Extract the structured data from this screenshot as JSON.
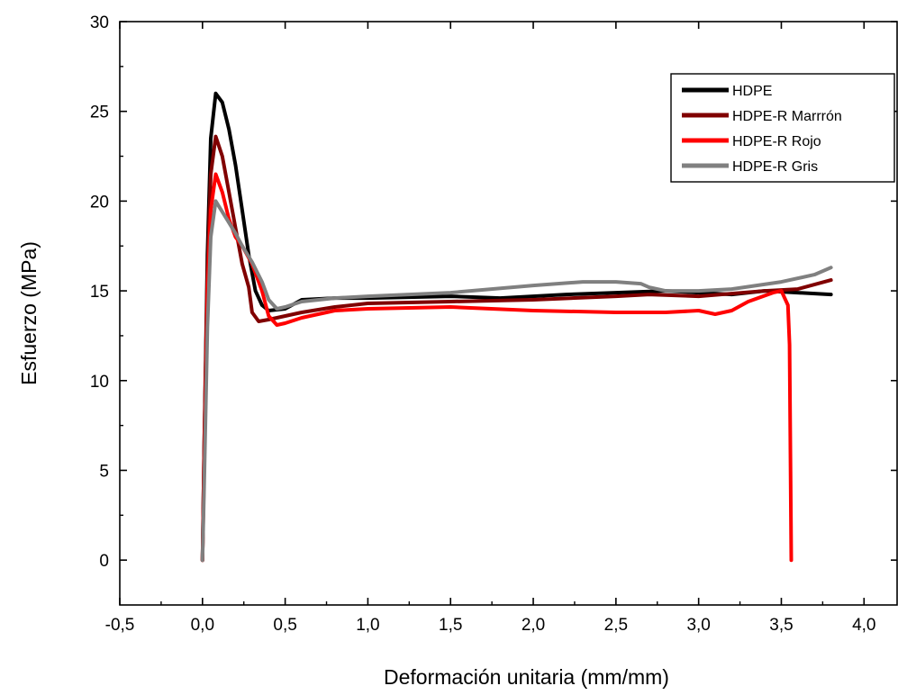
{
  "chart_data": {
    "type": "line",
    "title": "",
    "xlabel": "Deformación unitaria (mm/mm)",
    "ylabel": "Esfuerzo (MPa)",
    "xlim": [
      -0.5,
      4.2
    ],
    "ylim": [
      -2.5,
      30
    ],
    "x_ticks": [
      -0.5,
      0.0,
      0.5,
      1.0,
      1.5,
      2.0,
      2.5,
      3.0,
      3.5,
      4.0
    ],
    "x_tick_labels": [
      "-0,5",
      "0,0",
      "0,5",
      "1,0",
      "1,5",
      "2,0",
      "2,5",
      "3,0",
      "3,5",
      "4,0"
    ],
    "y_ticks": [
      0,
      5,
      10,
      15,
      20,
      25,
      30
    ],
    "y_tick_labels": [
      "0",
      "5",
      "10",
      "15",
      "20",
      "25",
      "30"
    ],
    "grid": false,
    "legend_position": "top-right",
    "series": [
      {
        "name": "HDPE",
        "color": "#000000",
        "points": [
          [
            0,
            0
          ],
          [
            0.01,
            6
          ],
          [
            0.03,
            17
          ],
          [
            0.05,
            23.5
          ],
          [
            0.08,
            26
          ],
          [
            0.12,
            25.5
          ],
          [
            0.16,
            24
          ],
          [
            0.2,
            22
          ],
          [
            0.24,
            19.5
          ],
          [
            0.28,
            17
          ],
          [
            0.32,
            15
          ],
          [
            0.36,
            14.2
          ],
          [
            0.4,
            13.9
          ],
          [
            0.5,
            14.0
          ],
          [
            0.6,
            14.5
          ],
          [
            0.8,
            14.6
          ],
          [
            1.0,
            14.6
          ],
          [
            1.5,
            14.7
          ],
          [
            1.8,
            14.6
          ],
          [
            2.0,
            14.7
          ],
          [
            2.2,
            14.8
          ],
          [
            2.5,
            14.9
          ],
          [
            2.8,
            15.0
          ],
          [
            3.0,
            14.9
          ],
          [
            3.2,
            14.8
          ],
          [
            3.4,
            15.0
          ],
          [
            3.6,
            14.9
          ],
          [
            3.8,
            14.8
          ]
        ]
      },
      {
        "name": "HDPE-R Marrrón",
        "color": "#800000",
        "points": [
          [
            0,
            0
          ],
          [
            0.01,
            6
          ],
          [
            0.03,
            16
          ],
          [
            0.05,
            21.5
          ],
          [
            0.08,
            23.6
          ],
          [
            0.12,
            22.5
          ],
          [
            0.16,
            20.5
          ],
          [
            0.2,
            18.5
          ],
          [
            0.24,
            16.5
          ],
          [
            0.28,
            15.2
          ],
          [
            0.3,
            13.8
          ],
          [
            0.34,
            13.3
          ],
          [
            0.4,
            13.4
          ],
          [
            0.5,
            13.6
          ],
          [
            0.6,
            13.8
          ],
          [
            0.8,
            14.1
          ],
          [
            1.0,
            14.3
          ],
          [
            1.5,
            14.4
          ],
          [
            2.0,
            14.5
          ],
          [
            2.5,
            14.7
          ],
          [
            2.7,
            14.8
          ],
          [
            3.0,
            14.7
          ],
          [
            3.4,
            15.0
          ],
          [
            3.6,
            15.1
          ],
          [
            3.8,
            15.6
          ]
        ]
      },
      {
        "name": "HDPE-R Rojo",
        "color": "#ff0000",
        "points": [
          [
            0,
            0
          ],
          [
            0.01,
            5
          ],
          [
            0.03,
            15
          ],
          [
            0.05,
            19.5
          ],
          [
            0.08,
            21.5
          ],
          [
            0.12,
            20.5
          ],
          [
            0.16,
            19
          ],
          [
            0.2,
            18
          ],
          [
            0.24,
            17.5
          ],
          [
            0.3,
            16.5
          ],
          [
            0.36,
            15.0
          ],
          [
            0.4,
            13.6
          ],
          [
            0.45,
            13.1
          ],
          [
            0.5,
            13.2
          ],
          [
            0.6,
            13.5
          ],
          [
            0.8,
            13.9
          ],
          [
            1.0,
            14.0
          ],
          [
            1.5,
            14.1
          ],
          [
            2.0,
            13.9
          ],
          [
            2.5,
            13.8
          ],
          [
            2.8,
            13.8
          ],
          [
            3.0,
            13.9
          ],
          [
            3.1,
            13.7
          ],
          [
            3.2,
            13.9
          ],
          [
            3.3,
            14.4
          ],
          [
            3.45,
            14.9
          ],
          [
            3.5,
            15.0
          ],
          [
            3.54,
            14.2
          ],
          [
            3.55,
            12
          ],
          [
            3.56,
            0
          ]
        ]
      },
      {
        "name": "HDPE-R Gris",
        "color": "#808080",
        "points": [
          [
            0,
            0
          ],
          [
            0.01,
            4
          ],
          [
            0.03,
            13
          ],
          [
            0.05,
            18
          ],
          [
            0.08,
            20
          ],
          [
            0.12,
            19.4
          ],
          [
            0.16,
            18.8
          ],
          [
            0.2,
            18.2
          ],
          [
            0.24,
            17.5
          ],
          [
            0.3,
            16.6
          ],
          [
            0.36,
            15.5
          ],
          [
            0.4,
            14.5
          ],
          [
            0.45,
            14.0
          ],
          [
            0.5,
            14.1
          ],
          [
            0.6,
            14.4
          ],
          [
            0.8,
            14.6
          ],
          [
            1.0,
            14.7
          ],
          [
            1.5,
            14.9
          ],
          [
            2.0,
            15.3
          ],
          [
            2.3,
            15.5
          ],
          [
            2.5,
            15.5
          ],
          [
            2.65,
            15.4
          ],
          [
            2.7,
            15.2
          ],
          [
            2.8,
            15.0
          ],
          [
            3.0,
            15.0
          ],
          [
            3.2,
            15.1
          ],
          [
            3.5,
            15.5
          ],
          [
            3.7,
            15.9
          ],
          [
            3.8,
            16.3
          ]
        ]
      }
    ]
  }
}
